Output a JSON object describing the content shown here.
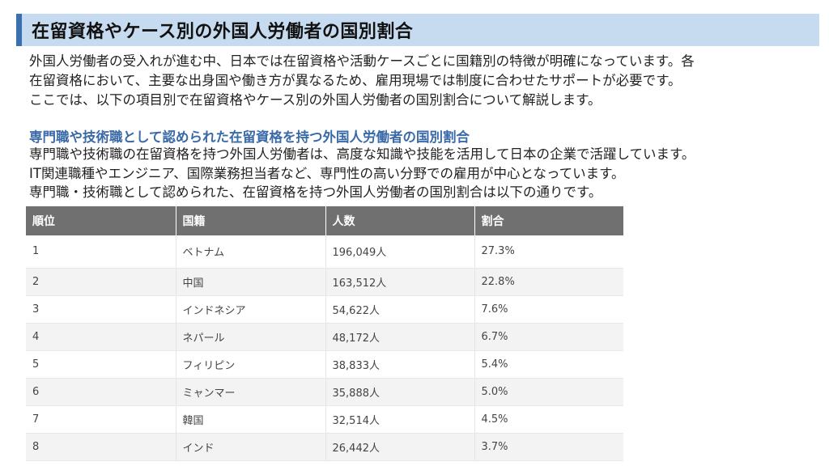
{
  "header": {
    "title": "在留資格やケース別の外国人労働者の国別割合"
  },
  "intro": {
    "lines": [
      "外国人労働者の受入れが進む中、日本では在留資格や活動ケースごとに国籍別の特徴が明確になっています。各",
      "在留資格において、主要な出身国や働き方が異なるため、雇用現場では制度に合わせたサポートが必要です。",
      "ここでは、以下の項目別で在留資格やケース別の外国人労働者の国別割合について解説します。"
    ]
  },
  "section": {
    "heading": "専門職や技術職として認められた在留資格を持つ外国人労働者の国別割合",
    "lines": [
      "専門職や技術職の在留資格を持つ外国人労働者は、高度な知識や技能を活用して日本の企業で活躍しています。",
      "IT関連職種やエンジニア、国際業務担当者など、専門性の高い分野での雇用が中心となっています。",
      "専門職・技術職として認められた、在留資格を持つ外国人労働者の国別割合は以下の通りです。"
    ]
  },
  "table": {
    "headers": [
      "順位",
      "国籍",
      "人数",
      "割合"
    ],
    "rows": [
      [
        "1",
        "ベトナム",
        "196,049人",
        "27.3%"
      ],
      [
        "2",
        "中国",
        "163,512人",
        "22.8%"
      ],
      [
        "3",
        "インドネシア",
        "54,622人",
        "7.6%"
      ],
      [
        "4",
        "ネパール",
        "48,172人",
        "6.7%"
      ],
      [
        "5",
        "フィリピン",
        "38,833人",
        "5.4%"
      ],
      [
        "6",
        "ミャンマー",
        "35,888人",
        "5.0%"
      ],
      [
        "7",
        "韓国",
        "32,514人",
        "4.5%"
      ],
      [
        "8",
        "インド",
        "26,442人",
        "3.7%"
      ]
    ]
  },
  "colors": {
    "title_bg": "#c6dbef",
    "title_accent": "#3a6fb0",
    "subheading": "#3a6aa8",
    "table_header_bg": "#707070",
    "row_stripe": "#f3f3f3"
  }
}
